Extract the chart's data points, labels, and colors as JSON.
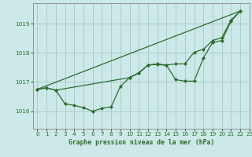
{
  "title": "Graphe pression niveau de la mer (hPa)",
  "bg_color": "#cce8e8",
  "grid_color": "#aacccc",
  "line_color": "#2d6e2d",
  "marker_color": "#2d6e2d",
  "xlim": [
    -0.5,
    23
  ],
  "ylim": [
    1015.4,
    1019.7
  ],
  "yticks": [
    1016,
    1017,
    1018,
    1019
  ],
  "xticks": [
    0,
    1,
    2,
    3,
    4,
    5,
    6,
    7,
    8,
    9,
    10,
    11,
    12,
    13,
    14,
    15,
    16,
    17,
    18,
    19,
    20,
    21,
    22,
    23
  ],
  "series1_dip": [
    [
      0,
      1016.75
    ],
    [
      1,
      1016.8
    ],
    [
      2,
      1016.72
    ],
    [
      3,
      1016.25
    ],
    [
      4,
      1016.2
    ],
    [
      5,
      1016.12
    ],
    [
      6,
      1016.0
    ],
    [
      7,
      1016.1
    ],
    [
      8,
      1016.15
    ],
    [
      9,
      1016.85
    ],
    [
      10,
      1017.15
    ],
    [
      11,
      1017.3
    ],
    [
      12,
      1017.58
    ],
    [
      13,
      1017.6
    ],
    [
      14,
      1017.57
    ],
    [
      15,
      1017.08
    ],
    [
      16,
      1017.03
    ],
    [
      17,
      1017.03
    ],
    [
      18,
      1017.82
    ],
    [
      19,
      1018.35
    ],
    [
      20,
      1018.42
    ],
    [
      21,
      1019.08
    ],
    [
      22,
      1019.43
    ]
  ],
  "series2_smooth": [
    [
      0,
      1016.75
    ],
    [
      1,
      1016.8
    ],
    [
      2,
      1016.72
    ],
    [
      10,
      1017.15
    ],
    [
      11,
      1017.32
    ],
    [
      12,
      1017.58
    ],
    [
      13,
      1017.62
    ],
    [
      14,
      1017.58
    ],
    [
      15,
      1017.62
    ],
    [
      16,
      1017.62
    ],
    [
      17,
      1018.02
    ],
    [
      18,
      1018.12
    ],
    [
      19,
      1018.42
    ],
    [
      20,
      1018.52
    ],
    [
      21,
      1019.12
    ],
    [
      22,
      1019.43
    ]
  ],
  "series3_straight": [
    [
      0,
      1016.75
    ],
    [
      22,
      1019.43
    ]
  ]
}
